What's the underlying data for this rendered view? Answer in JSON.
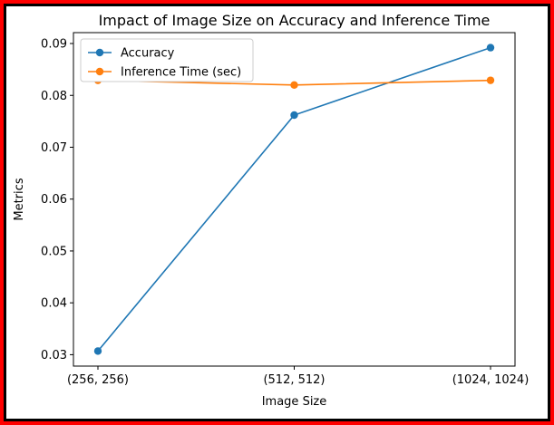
{
  "chart_data": {
    "type": "line",
    "title": "Impact of Image Size on Accuracy and Inference Time",
    "xlabel": "Image Size",
    "ylabel": "Metrics",
    "categories": [
      "(256, 256)",
      "(512, 512)",
      "(1024, 1024)"
    ],
    "series": [
      {
        "name": "Accuracy",
        "values": [
          0.0307,
          0.0762,
          0.0892
        ],
        "color": "#1f77b4"
      },
      {
        "name": "Inference Time (sec)",
        "values": [
          0.0829,
          0.082,
          0.0829
        ],
        "color": "#ff7f0e"
      }
    ],
    "yticks": [
      "0.03",
      "0.04",
      "0.05",
      "0.06",
      "0.07",
      "0.08",
      "0.09"
    ],
    "ytick_values": [
      0.03,
      0.04,
      0.05,
      0.06,
      0.07,
      0.08,
      0.09
    ],
    "ylim": [
      0.0278,
      0.0921
    ],
    "grid": false,
    "legend_position": "upper left"
  }
}
